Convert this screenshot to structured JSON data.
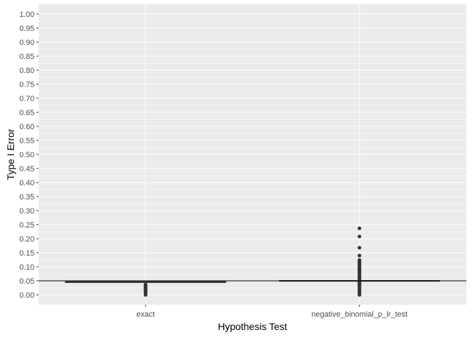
{
  "chart_data": {
    "type": "boxplot",
    "xlabel": "Hypothesis Test",
    "ylabel": "Type I Error",
    "ylim": [
      -0.035,
      1.035
    ],
    "yticks": [
      "0.00",
      "0.05",
      "0.10",
      "0.15",
      "0.20",
      "0.25",
      "0.30",
      "0.35",
      "0.40",
      "0.45",
      "0.50",
      "0.55",
      "0.60",
      "0.65",
      "0.70",
      "0.75",
      "0.80",
      "0.85",
      "0.90",
      "0.95",
      "1.00"
    ],
    "categories": [
      "exact",
      "negative_binomial_p_lr_test"
    ],
    "boxes": [
      {
        "category": "exact",
        "q1": 0.044,
        "median": 0.046,
        "q3": 0.047,
        "whisker_low": 0.044,
        "whisker_high": 0.047,
        "outliers": [
          0.0,
          0.005,
          0.01,
          0.013,
          0.016,
          0.019,
          0.022,
          0.025,
          0.028,
          0.031,
          0.034,
          0.037
        ]
      },
      {
        "category": "negative_binomial_p_lr_test",
        "q1": 0.049,
        "median": 0.05,
        "q3": 0.051,
        "whisker_low": 0.049,
        "whisker_high": 0.051,
        "outliers": [
          0.0,
          0.005,
          0.01,
          0.015,
          0.02,
          0.025,
          0.03,
          0.034,
          0.038,
          0.042,
          0.045,
          0.056,
          0.06,
          0.064,
          0.068,
          0.072,
          0.076,
          0.08,
          0.084,
          0.088,
          0.092,
          0.096,
          0.1,
          0.104,
          0.108,
          0.112,
          0.116,
          0.12,
          0.124,
          0.14,
          0.168,
          0.208,
          0.237
        ]
      }
    ],
    "hline": 0.05,
    "grid": true,
    "legend": "none",
    "colors": {
      "panel_bg": "#ebebeb",
      "grid": "#ffffff",
      "box_outline": "#333333",
      "box_fill": "#ffffff",
      "point": "#333333",
      "hline": "#000000"
    }
  }
}
